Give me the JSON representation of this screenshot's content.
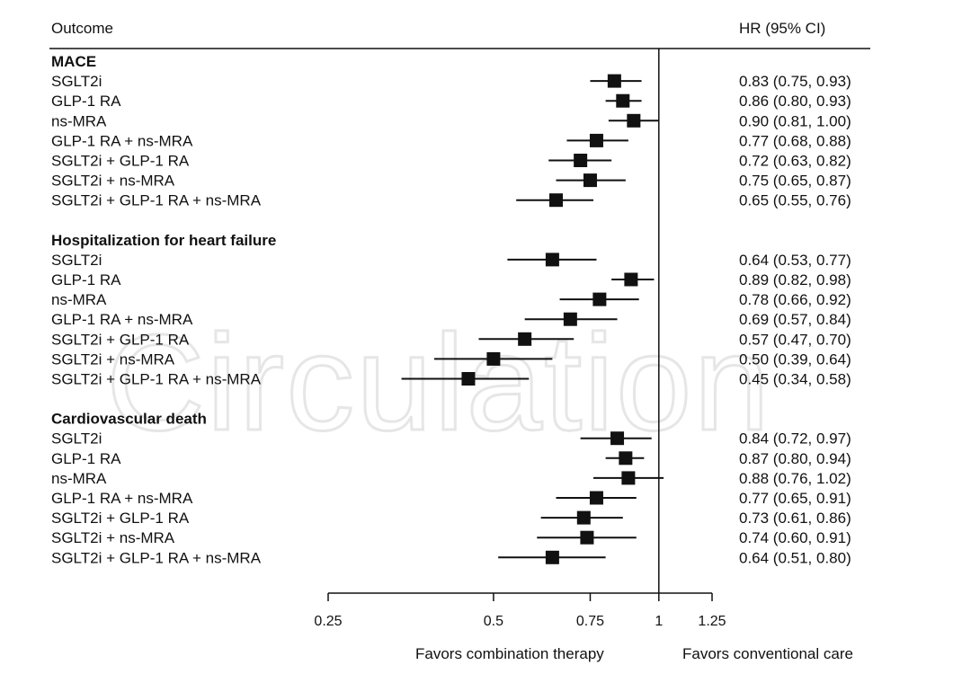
{
  "header": {
    "outcome_label": "Outcome",
    "hr_label": "HR (95% CI)"
  },
  "watermark_text": "Circulation",
  "favors": {
    "left": "Favors combination therapy",
    "right": "Favors conventional care"
  },
  "colors": {
    "ink": "#111111",
    "watermark": "#e6e6e6"
  },
  "chart_data": {
    "type": "forest",
    "x_scale": "log",
    "xlim": [
      0.25,
      1.25
    ],
    "x_ticks": [
      0.25,
      0.5,
      0.75,
      1,
      1.25
    ],
    "x_tick_labels": [
      "0.25",
      "0.5",
      "0.75",
      "1",
      "1.25"
    ],
    "reference_line": 1,
    "groups": [
      {
        "name": "MACE",
        "rows": [
          {
            "label": "SGLT2i",
            "hr": 0.83,
            "lo": 0.75,
            "hi": 0.93,
            "text": "0.83 (0.75, 0.93)"
          },
          {
            "label": "GLP-1 RA",
            "hr": 0.86,
            "lo": 0.8,
            "hi": 0.93,
            "text": "0.86 (0.80, 0.93)"
          },
          {
            "label": "ns-MRA",
            "hr": 0.9,
            "lo": 0.81,
            "hi": 1.0,
            "text": "0.90 (0.81, 1.00)"
          },
          {
            "label": "GLP-1 RA + ns-MRA",
            "hr": 0.77,
            "lo": 0.68,
            "hi": 0.88,
            "text": "0.77 (0.68, 0.88)"
          },
          {
            "label": "SGLT2i + GLP-1 RA",
            "hr": 0.72,
            "lo": 0.63,
            "hi": 0.82,
            "text": "0.72 (0.63, 0.82)"
          },
          {
            "label": "SGLT2i + ns-MRA",
            "hr": 0.75,
            "lo": 0.65,
            "hi": 0.87,
            "text": "0.75 (0.65, 0.87)"
          },
          {
            "label": "SGLT2i + GLP-1 RA + ns-MRA",
            "hr": 0.65,
            "lo": 0.55,
            "hi": 0.76,
            "text": "0.65 (0.55, 0.76)"
          }
        ]
      },
      {
        "name": "Hospitalization for heart failure",
        "rows": [
          {
            "label": "SGLT2i",
            "hr": 0.64,
            "lo": 0.53,
            "hi": 0.77,
            "text": "0.64 (0.53, 0.77)"
          },
          {
            "label": "GLP-1 RA",
            "hr": 0.89,
            "lo": 0.82,
            "hi": 0.98,
            "text": "0.89 (0.82, 0.98)"
          },
          {
            "label": "ns-MRA",
            "hr": 0.78,
            "lo": 0.66,
            "hi": 0.92,
            "text": "0.78 (0.66, 0.92)"
          },
          {
            "label": "GLP-1 RA + ns-MRA",
            "hr": 0.69,
            "lo": 0.57,
            "hi": 0.84,
            "text": "0.69 (0.57, 0.84)"
          },
          {
            "label": "SGLT2i + GLP-1 RA",
            "hr": 0.57,
            "lo": 0.47,
            "hi": 0.7,
            "text": "0.57 (0.47, 0.70)"
          },
          {
            "label": "SGLT2i + ns-MRA",
            "hr": 0.5,
            "lo": 0.39,
            "hi": 0.64,
            "text": "0.50 (0.39, 0.64)"
          },
          {
            "label": "SGLT2i + GLP-1 RA + ns-MRA",
            "hr": 0.45,
            "lo": 0.34,
            "hi": 0.58,
            "text": "0.45 (0.34, 0.58)"
          }
        ]
      },
      {
        "name": "Cardiovascular death",
        "rows": [
          {
            "label": "SGLT2i",
            "hr": 0.84,
            "lo": 0.72,
            "hi": 0.97,
            "text": "0.84 (0.72, 0.97)"
          },
          {
            "label": "GLP-1 RA",
            "hr": 0.87,
            "lo": 0.8,
            "hi": 0.94,
            "text": "0.87 (0.80, 0.94)"
          },
          {
            "label": "ns-MRA",
            "hr": 0.88,
            "lo": 0.76,
            "hi": 1.02,
            "text": "0.88 (0.76, 1.02)"
          },
          {
            "label": "GLP-1 RA + ns-MRA",
            "hr": 0.77,
            "lo": 0.65,
            "hi": 0.91,
            "text": "0.77 (0.65, 0.91)"
          },
          {
            "label": "SGLT2i + GLP-1 RA",
            "hr": 0.73,
            "lo": 0.61,
            "hi": 0.86,
            "text": "0.73 (0.61, 0.86)"
          },
          {
            "label": "SGLT2i + ns-MRA",
            "hr": 0.74,
            "lo": 0.6,
            "hi": 0.91,
            "text": "0.74 (0.60, 0.91)"
          },
          {
            "label": "SGLT2i + GLP-1 RA + ns-MRA",
            "hr": 0.64,
            "lo": 0.51,
            "hi": 0.8,
            "text": "0.64 (0.51, 0.80)"
          }
        ]
      }
    ]
  }
}
